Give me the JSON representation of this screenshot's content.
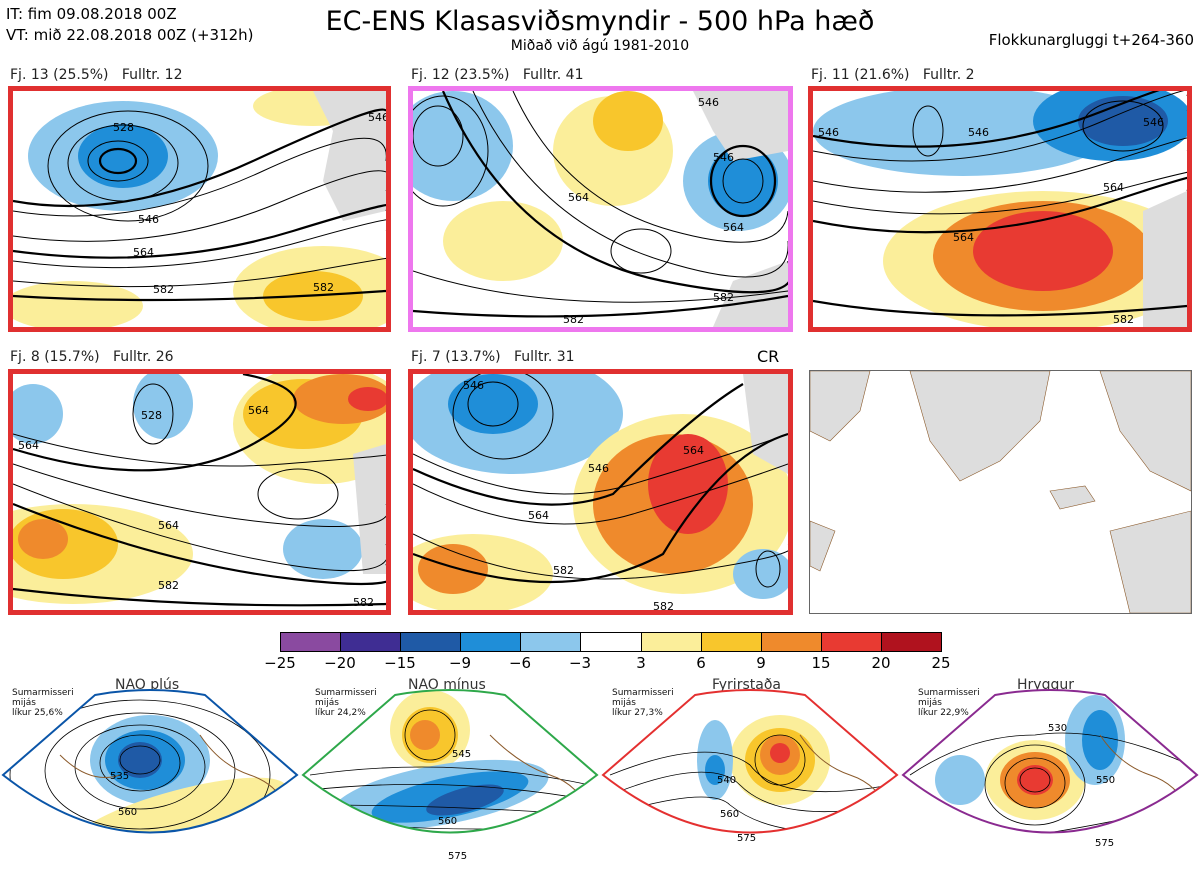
{
  "header": {
    "it": "IT: fim 09.08.2018 00Z",
    "vt": "VT: mið 22.08.2018 00Z  (+312h)",
    "title": "EC-ENS Klasasviðsmyndir - 500 hPa hæð",
    "subtitle": "Miðað við ágú 1981-2010",
    "window": "Flokkunargluggi t+264-360"
  },
  "panels": [
    {
      "label": "Fj. 13 (25.5%)   Fulltr. 12",
      "border": "#e03030",
      "contours": [
        "528",
        "546",
        "564",
        "582",
        "582",
        "546"
      ]
    },
    {
      "label": "Fj. 12 (23.5%)   Fulltr. 41",
      "border": "#ee77ee",
      "contours": [
        "546",
        "564",
        "582",
        "582",
        "546",
        "564"
      ]
    },
    {
      "label": "Fj. 11 (21.6%)   Fulltr. 2",
      "border": "#e03030",
      "contours": [
        "546",
        "546",
        "546",
        "564",
        "564",
        "582"
      ]
    },
    {
      "label": "Fj. 8 (15.7%)   Fulltr. 26",
      "border": "#e03030",
      "contours": [
        "564",
        "528",
        "564",
        "564",
        "582",
        "582"
      ]
    },
    {
      "label": "Fj. 7 (13.7%)   Fulltr. 31",
      "border": "#e03030",
      "contours": [
        "546",
        "564",
        "564",
        "582",
        "582",
        "546"
      ]
    }
  ],
  "cr_label": "CR",
  "colorbar": {
    "colors": [
      "#8a4aa0",
      "#3f2d93",
      "#1f5aa6",
      "#1f8ed8",
      "#8cc7ec",
      "#ffffff",
      "#fbee9a",
      "#f8c62c",
      "#ef8a2c",
      "#e83a32",
      "#b0121e"
    ],
    "ticks": [
      "−25",
      "−20",
      "−15",
      "−9",
      "−6",
      "−3",
      "3",
      "6",
      "9",
      "15",
      "20",
      "25"
    ]
  },
  "regimes": [
    {
      "name": "NAO plús",
      "meta": [
        "Sumarmisseri",
        "mijás",
        "líkur 25,6%"
      ],
      "color": "#0a55a8",
      "dot": "#0a55a8",
      "contours": [
        "535",
        "560"
      ]
    },
    {
      "name": "NAO mínus",
      "meta": [
        "Sumarmisseri",
        "mijás",
        "líkur 24,2%"
      ],
      "color": "#2ea84a",
      "dot": "#2ea84a",
      "contours": [
        "545",
        "560",
        "575"
      ]
    },
    {
      "name": "Fyrirstaða",
      "meta": [
        "Sumarmisseri",
        "mijás",
        "líkur 27,3%"
      ],
      "color": "#e43030",
      "dot": "#e43030",
      "contours": [
        "540",
        "560",
        "575"
      ]
    },
    {
      "name": "Hryggur",
      "meta": [
        "Sumarmisseri",
        "mijás",
        "líkur 22,9%"
      ],
      "color": "#8a2a90",
      "dot": "#ee77ee",
      "contours": [
        "530",
        "550",
        "575"
      ]
    }
  ]
}
